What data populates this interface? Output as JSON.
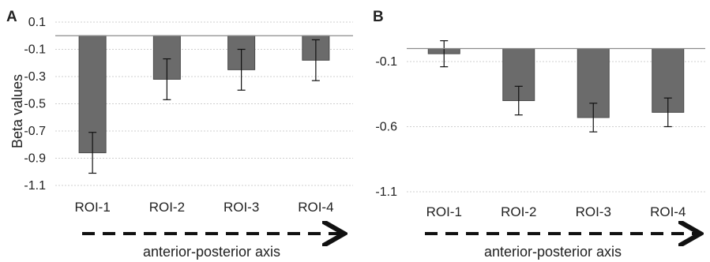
{
  "figure": {
    "panel_labels": [
      "A",
      "B"
    ]
  },
  "colors": {
    "bar_fill": "#6b6b6b",
    "bar_stroke": "#4a4a4a",
    "gridline": "#cfcfcf",
    "zero_line": "#8c8c8c",
    "text": "#222222",
    "arrow": "#111111"
  },
  "chart_data": [
    {
      "panel": "A",
      "type": "bar",
      "title": "",
      "ylabel": "Beta values",
      "xlabel": "anterior-posterior axis",
      "categories": [
        "ROI-1",
        "ROI-2",
        "ROI-3",
        "ROI-4"
      ],
      "values": [
        -0.86,
        -0.32,
        -0.25,
        -0.18
      ],
      "error": [
        0.15,
        0.15,
        0.15,
        0.15
      ],
      "yticks": [
        0.1,
        -0.1,
        -0.3,
        -0.5,
        -0.7,
        -0.9,
        -1.1
      ],
      "ytick_labels": [
        "0.1",
        "-0.1",
        "-0.3",
        "-0.5",
        "-0.7",
        "-0.9",
        "-1.1"
      ],
      "ylim": [
        -1.1,
        0.1
      ],
      "grid": true,
      "legend": "none"
    },
    {
      "panel": "B",
      "type": "bar",
      "title": "",
      "ylabel": "",
      "xlabel": "anterior-posterior axis",
      "categories": [
        "ROI-1",
        "ROI-2",
        "ROI-3",
        "ROI-4"
      ],
      "values": [
        -0.04,
        -0.4,
        -0.53,
        -0.49
      ],
      "error": [
        0.1,
        0.11,
        0.11,
        0.11
      ],
      "yticks": [
        -0.1,
        -0.6,
        -1.1
      ],
      "ytick_labels": [
        "-0.1",
        "-0.6",
        "-1.1"
      ],
      "ylim": [
        -1.1,
        0.1
      ],
      "grid": true,
      "legend": "none"
    }
  ]
}
